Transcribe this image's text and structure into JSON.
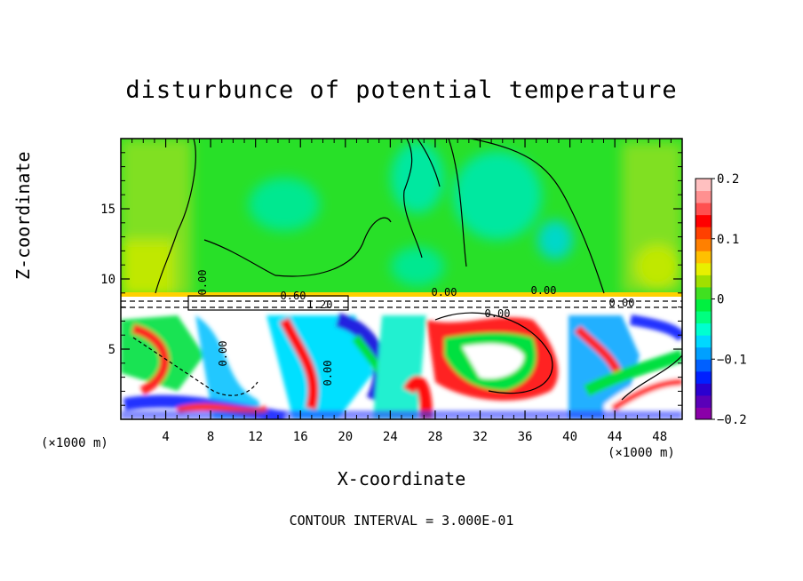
{
  "chart_data": {
    "type": "heatmap",
    "title": "disturbunce of potential temperature",
    "xlabel": "X-coordinate",
    "ylabel": "Z-coordinate",
    "x_unit": "(×1000 m)",
    "y_unit": "(×1000 m)",
    "xlim": [
      0,
      50
    ],
    "ylim": [
      0,
      20
    ],
    "x_ticks": [
      "4",
      "8",
      "12",
      "16",
      "20",
      "24",
      "28",
      "32",
      "36",
      "40",
      "44",
      "48"
    ],
    "y_ticks": [
      "5",
      "10",
      "15"
    ],
    "colorbar": {
      "range": [
        -0.2,
        0.2
      ],
      "tick_labels": [
        "0.2",
        "0.1",
        "0",
        "−0.1",
        "−0.2"
      ],
      "colors": [
        "#8a00a8",
        "#5a00b8",
        "#2a00d0",
        "#0020ff",
        "#0060ff",
        "#00a0ff",
        "#00d8ff",
        "#00ffd0",
        "#00ff80",
        "#00f040",
        "#40e020",
        "#a0e000",
        "#e8f000",
        "#ffc000",
        "#ff8000",
        "#ff4000",
        "#ff0000",
        "#ff5050",
        "#ff9090",
        "#ffc0c0"
      ]
    },
    "contour_interval": "CONTOUR INTERVAL = 3.000E-01",
    "contour_labels": [
      "0.00",
      "0.00",
      "0.60",
      "1.20",
      "0.00",
      "0.00",
      "0.00",
      "0.00",
      "0.00"
    ]
  }
}
